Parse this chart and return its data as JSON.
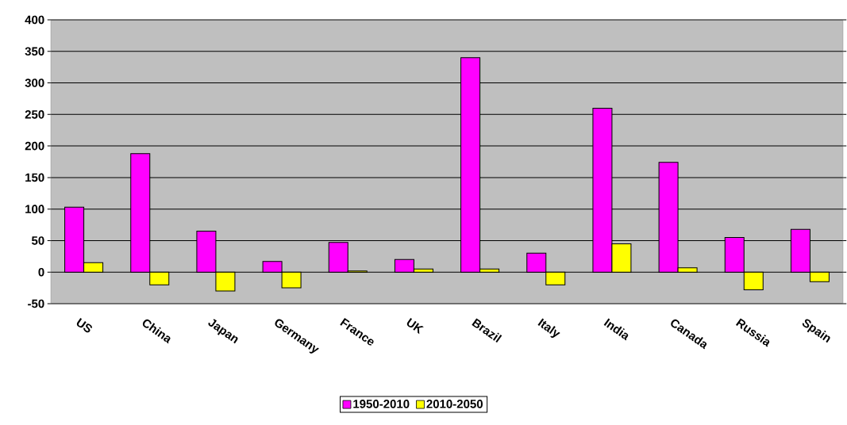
{
  "chart_data": {
    "type": "bar",
    "categories": [
      "US",
      "China",
      "Japan",
      "Germany",
      "France",
      "UK",
      "Brazil",
      "Italy",
      "India",
      "Canada",
      "Russia",
      "Spain"
    ],
    "series": [
      {
        "name": "1950-2010",
        "color": "#ff00ff",
        "values": [
          103,
          188,
          65,
          17,
          47,
          20,
          340,
          30,
          260,
          174,
          55,
          68
        ]
      },
      {
        "name": "2010-2050",
        "color": "#ffff00",
        "values": [
          15,
          -20,
          -30,
          -25,
          2,
          5,
          5,
          -20,
          45,
          7,
          -28,
          -15
        ]
      }
    ],
    "ylim": [
      -50,
      400
    ],
    "yticks": [
      -50,
      0,
      50,
      100,
      150,
      200,
      250,
      300,
      350,
      400
    ],
    "grid": "y",
    "legend": "bottom"
  }
}
